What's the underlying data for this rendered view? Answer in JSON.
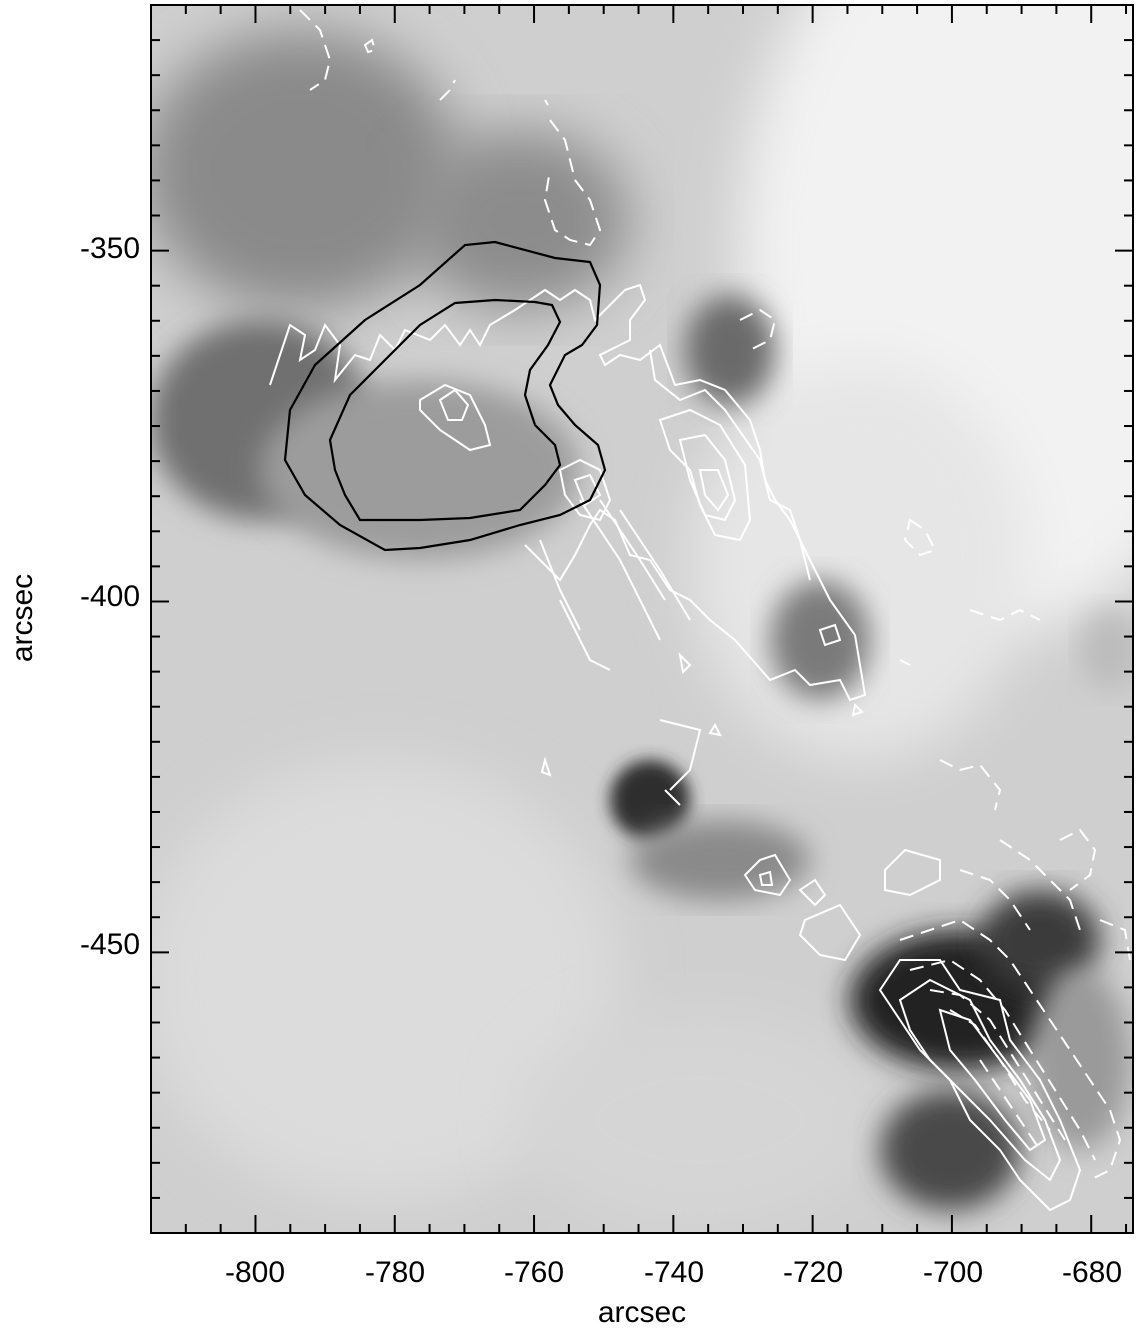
{
  "figure": {
    "xlabel": "arcsec",
    "ylabel": "arcsec",
    "x_ticks": [
      "-800",
      "-780",
      "-760",
      "-740",
      "-720",
      "-700",
      "-680"
    ],
    "y_ticks": [
      "-350",
      "-400",
      "-450"
    ],
    "x_range": [
      -815,
      -674
    ],
    "y_range": [
      -490,
      -315
    ],
    "background": "grayscale solar image",
    "contour_colors": {
      "white": "#ffffff",
      "black": "#000000"
    }
  }
}
